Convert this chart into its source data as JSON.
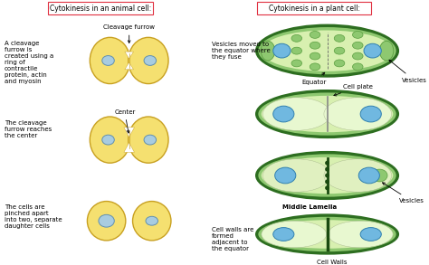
{
  "title_animal": "Cytokinesis in an animal cell:",
  "title_plant": "Cytokinesis in a plant cell:",
  "bg_color": "#ffffff",
  "animal_cell_color": "#f5e070",
  "animal_cell_edge": "#c8a020",
  "animal_nucleus_color": "#a8cce0",
  "animal_nucleus_edge": "#6090b0",
  "plant_outer_color": "#2d6e20",
  "plant_inner_color": "#8ec870",
  "plant_cell_color": "#d8f0b0",
  "plant_nucleus_color": "#70b8e0",
  "plant_nucleus_edge": "#3080b0",
  "plant_vesicle_color": "#5a9e40",
  "plant_vesicle_fill": "#8ec870",
  "plant_midlamella_color": "#1a4a10",
  "title_box_color": "#e03040",
  "fs_label": 5.0,
  "fs_desc": 5.0,
  "fs_title": 5.5,
  "labels": {
    "cleavage_furrow": "Cleavage furrow",
    "center": "Center",
    "desc1": "A cleavage\nfurrow is\ncreated using a\nring of\ncontractile\nprotein, actin\nand myosin",
    "desc2": "The cleavage\nfurrow reaches\nthe center",
    "desc3": "The cells are\npinched apart\ninto two, separate\ndaughter cells",
    "equator": "Equator",
    "vesicles_top": "Vesicles",
    "vesicles_mid": "Vesicles",
    "cell_plate": "Cell plate",
    "middle_lamella": "Middle Lamella",
    "cell_walls": "Cell Walls",
    "desc_plant1": "Vesicles moved to\nthe equator where\nthey fuse",
    "desc_plant2": "Cell walls are\nformed\nadjacent to\nthe equator"
  }
}
